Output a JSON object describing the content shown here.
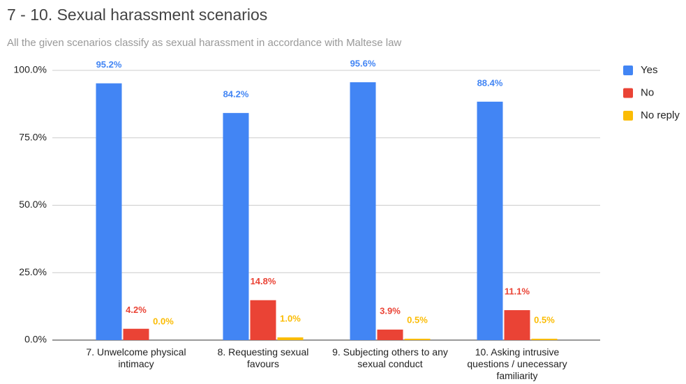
{
  "chart_data": {
    "type": "bar",
    "title": "7 - 10. Sexual harassment scenarios",
    "subtitle": "All the given scenarios classify as sexual harassment in accordance with Maltese law",
    "categories": [
      "7. Unwelcome physical intimacy",
      "8. Requesting sexual favours",
      "9. Subjecting others to any sexual conduct",
      "10. Asking intrusive questions / unecessary familiarity"
    ],
    "series": [
      {
        "name": "Yes",
        "color": "#4285f4",
        "values": [
          95.2,
          84.2,
          95.6,
          88.4
        ],
        "value_labels": [
          "95.2%",
          "84.2%",
          "95.6%",
          "88.4%"
        ]
      },
      {
        "name": "No",
        "color": "#ea4335",
        "values": [
          4.2,
          14.8,
          3.9,
          11.1
        ],
        "value_labels": [
          "4.2%",
          "14.8%",
          "3.9%",
          "11.1%"
        ]
      },
      {
        "name": "No reply",
        "color": "#fbbc04",
        "values": [
          0.0,
          1.0,
          0.5,
          0.5
        ],
        "value_labels": [
          "0.0%",
          "1.0%",
          "0.5%",
          "0.5%"
        ]
      }
    ],
    "ylim": [
      0,
      100
    ],
    "yticks": [
      {
        "value": 0,
        "label": "0.0%"
      },
      {
        "value": 25,
        "label": "25.0%"
      },
      {
        "value": 50,
        "label": "50.0%"
      },
      {
        "value": 75,
        "label": "75.0%"
      },
      {
        "value": 100,
        "label": "100.0%"
      }
    ],
    "grid": true,
    "legend": "right"
  }
}
